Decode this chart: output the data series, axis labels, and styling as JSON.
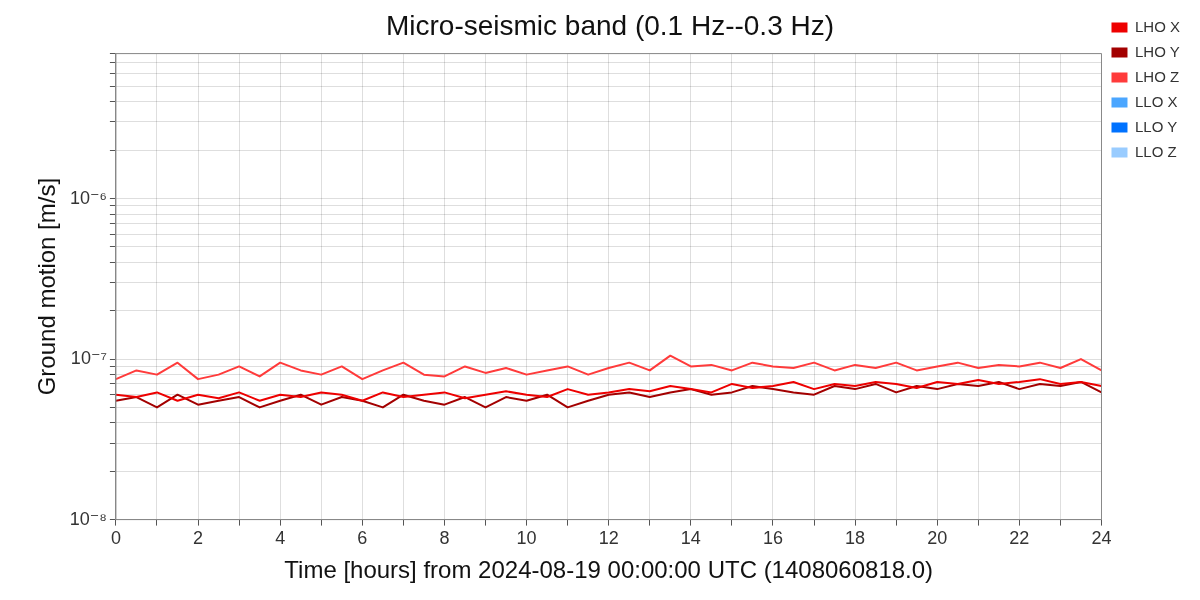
{
  "chart_data": {
    "type": "line",
    "title": "Micro-seismic band (0.1 Hz--0.3 Hz)",
    "xlabel": "Time [hours] from 2024-08-19 00:00:00 UTC (1408060818.0)",
    "ylabel": "Ground motion [m/s]",
    "x": [
      0,
      0.5,
      1,
      1.5,
      2,
      2.5,
      3,
      3.5,
      4,
      4.5,
      5,
      5.5,
      6,
      6.5,
      7,
      7.5,
      8,
      8.5,
      9,
      9.5,
      10,
      10.5,
      11,
      11.5,
      12,
      12.5,
      13,
      13.5,
      14,
      14.5,
      15,
      15.5,
      16,
      16.5,
      17,
      17.5,
      18,
      18.5,
      19,
      19.5,
      20,
      20.5,
      21,
      21.5,
      22,
      22.5,
      23,
      23.5,
      24
    ],
    "series": [
      {
        "name": "LHO X",
        "color": "#ee0000",
        "values": [
          6e-08,
          5.8e-08,
          6.2e-08,
          5.5e-08,
          6e-08,
          5.7e-08,
          6.2e-08,
          5.5e-08,
          6e-08,
          5.8e-08,
          6.2e-08,
          6e-08,
          5.5e-08,
          6.2e-08,
          5.8e-08,
          6e-08,
          6.2e-08,
          5.7e-08,
          6e-08,
          6.3e-08,
          6e-08,
          5.8e-08,
          6.5e-08,
          6e-08,
          6.2e-08,
          6.5e-08,
          6.3e-08,
          6.8e-08,
          6.5e-08,
          6.2e-08,
          7e-08,
          6.6e-08,
          6.8e-08,
          7.2e-08,
          6.5e-08,
          7e-08,
          6.8e-08,
          7.2e-08,
          7e-08,
          6.6e-08,
          7.2e-08,
          7e-08,
          7.4e-08,
          7e-08,
          7.2e-08,
          7.5e-08,
          7e-08,
          7.2e-08,
          6.8e-08
        ]
      },
      {
        "name": "LHO Y",
        "color": "#a30000",
        "values": [
          5.5e-08,
          5.8e-08,
          5e-08,
          6e-08,
          5.2e-08,
          5.5e-08,
          5.8e-08,
          5e-08,
          5.5e-08,
          6e-08,
          5.2e-08,
          5.8e-08,
          5.5e-08,
          5e-08,
          6e-08,
          5.5e-08,
          5.2e-08,
          5.8e-08,
          5e-08,
          5.8e-08,
          5.5e-08,
          6e-08,
          5e-08,
          5.5e-08,
          6e-08,
          6.2e-08,
          5.8e-08,
          6.2e-08,
          6.5e-08,
          6e-08,
          6.2e-08,
          6.8e-08,
          6.5e-08,
          6.2e-08,
          6e-08,
          6.8e-08,
          6.5e-08,
          7e-08,
          6.2e-08,
          6.8e-08,
          6.5e-08,
          7e-08,
          6.8e-08,
          7.2e-08,
          6.5e-08,
          7e-08,
          6.8e-08,
          7.2e-08,
          6.2e-08
        ]
      },
      {
        "name": "LHO Z",
        "color": "#ff3b3b",
        "values": [
          7.5e-08,
          8.5e-08,
          8e-08,
          9.5e-08,
          7.5e-08,
          8e-08,
          9e-08,
          7.8e-08,
          9.5e-08,
          8.5e-08,
          8e-08,
          9e-08,
          7.5e-08,
          8.5e-08,
          9.5e-08,
          8e-08,
          7.8e-08,
          9e-08,
          8.2e-08,
          8.8e-08,
          8e-08,
          8.5e-08,
          9e-08,
          8e-08,
          8.8e-08,
          9.5e-08,
          8.5e-08,
          1.05e-07,
          9e-08,
          9.2e-08,
          8.5e-08,
          9.5e-08,
          9e-08,
          8.8e-08,
          9.5e-08,
          8.5e-08,
          9.2e-08,
          8.8e-08,
          9.5e-08,
          8.5e-08,
          9e-08,
          9.5e-08,
          8.8e-08,
          9.2e-08,
          9e-08,
          9.5e-08,
          8.8e-08,
          1e-07,
          8.5e-08
        ]
      },
      {
        "name": "LLO X",
        "color": "#4ba6ff",
        "values": [
          null,
          null,
          null,
          null,
          null,
          null,
          null,
          null,
          null,
          null,
          null,
          null,
          null,
          null,
          null,
          null,
          null,
          null,
          null,
          null,
          null,
          null,
          null,
          null,
          null,
          null,
          null,
          null,
          null,
          null,
          null,
          null,
          null,
          null,
          null,
          null,
          null,
          null,
          null,
          null,
          null,
          null,
          null,
          null,
          null,
          null,
          null,
          null,
          null
        ]
      },
      {
        "name": "LLO Y",
        "color": "#0072ff",
        "values": [
          null,
          null,
          null,
          null,
          null,
          null,
          null,
          null,
          null,
          null,
          null,
          null,
          null,
          null,
          null,
          null,
          null,
          null,
          null,
          null,
          null,
          null,
          null,
          null,
          null,
          null,
          null,
          null,
          null,
          null,
          null,
          null,
          null,
          null,
          null,
          null,
          null,
          null,
          null,
          null,
          null,
          null,
          null,
          null,
          null,
          null,
          null,
          null,
          null
        ]
      },
      {
        "name": "LLO Z",
        "color": "#99ccff",
        "values": [
          null,
          null,
          null,
          null,
          null,
          null,
          null,
          null,
          null,
          null,
          null,
          null,
          null,
          null,
          null,
          null,
          null,
          null,
          null,
          null,
          null,
          null,
          null,
          null,
          null,
          null,
          null,
          null,
          null,
          null,
          null,
          null,
          null,
          null,
          null,
          null,
          null,
          null,
          null,
          null,
          null,
          null,
          null,
          null,
          null,
          null,
          null,
          null,
          null
        ]
      }
    ],
    "log": "y",
    "xlim": [
      0,
      24
    ],
    "xticks": [
      0,
      {
        "value": 1,
        "label": null
      },
      2,
      {
        "value": 3,
        "label": null
      },
      4,
      {
        "value": 5,
        "label": null
      },
      6,
      {
        "value": 7,
        "label": null
      },
      8,
      {
        "value": 9,
        "label": null
      },
      10,
      {
        "value": 11,
        "label": null
      },
      12,
      {
        "value": 13,
        "label": null
      },
      14,
      {
        "value": 15,
        "label": null
      },
      16,
      {
        "value": 17,
        "label": null
      },
      18,
      {
        "value": 19,
        "label": null
      },
      20,
      {
        "value": 21,
        "label": null
      },
      22,
      {
        "value": 23,
        "label": null
      },
      24
    ],
    "ylim": [
      1e-08,
      8e-06
    ],
    "yticks": [
      {
        "value": 1e-08,
        "label": "10⁻⁸"
      },
      {
        "value": 2e-08,
        "label": null
      },
      {
        "value": 3e-08,
        "label": null
      },
      {
        "value": 4e-08,
        "label": null
      },
      {
        "value": 5e-08,
        "label": null
      },
      {
        "value": 6e-08,
        "label": null
      },
      {
        "value": 7e-08,
        "label": null
      },
      {
        "value": 8e-08,
        "label": null
      },
      {
        "value": 9e-08,
        "label": null
      },
      {
        "value": 1e-07,
        "label": "10⁻⁷"
      },
      {
        "value": 2e-07,
        "label": null
      },
      {
        "value": 3e-07,
        "label": null
      },
      {
        "value": 4e-07,
        "label": null
      },
      {
        "value": 5e-07,
        "label": null
      },
      {
        "value": 6e-07,
        "label": null
      },
      {
        "value": 7e-07,
        "label": null
      },
      {
        "value": 8e-07,
        "label": null
      },
      {
        "value": 9e-07,
        "label": null
      },
      {
        "value": 1e-06,
        "label": "10⁻⁶"
      },
      {
        "value": 2e-06,
        "label": null
      },
      {
        "value": 3e-06,
        "label": null
      },
      {
        "value": 4e-06,
        "label": null
      },
      {
        "value": 5e-06,
        "label": null
      },
      {
        "value": 6e-06,
        "label": null
      },
      {
        "value": 7e-06,
        "label": null
      },
      {
        "value": 8e-06,
        "label": null
      }
    ],
    "grid": true,
    "legend": "top right",
    "marker": "none",
    "line_style": "solid"
  }
}
